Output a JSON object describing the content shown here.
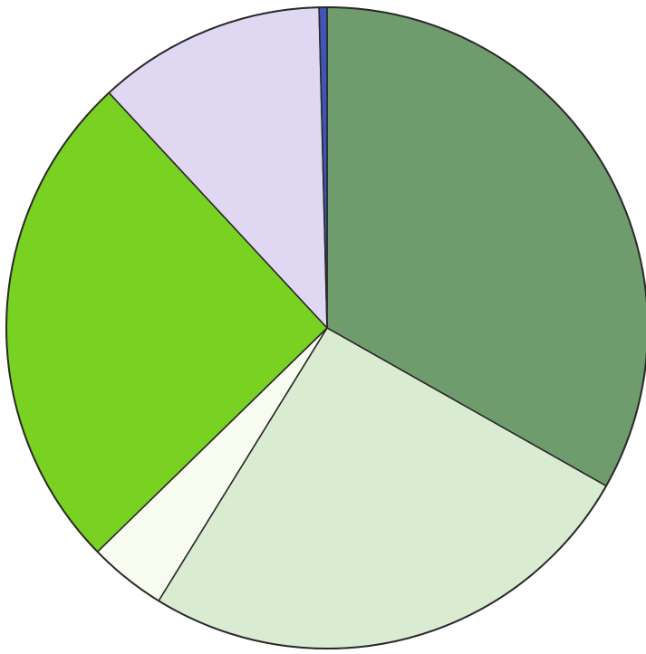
{
  "chart_data": {
    "type": "pie",
    "title": "",
    "start_angle_deg": 0,
    "direction": "clockwise",
    "legend": "none",
    "slices": [
      {
        "value": 33.2,
        "color": "#6f9c6c"
      },
      {
        "value": 25.6,
        "color": "#d9ecd2"
      },
      {
        "value": 3.9,
        "color": "#f7fbf0"
      },
      {
        "value": 25.4,
        "color": "#79d221"
      },
      {
        "value": 11.5,
        "color": "#e0d8f2"
      },
      {
        "value": 0.4,
        "color": "#3f55b8"
      }
    ]
  }
}
